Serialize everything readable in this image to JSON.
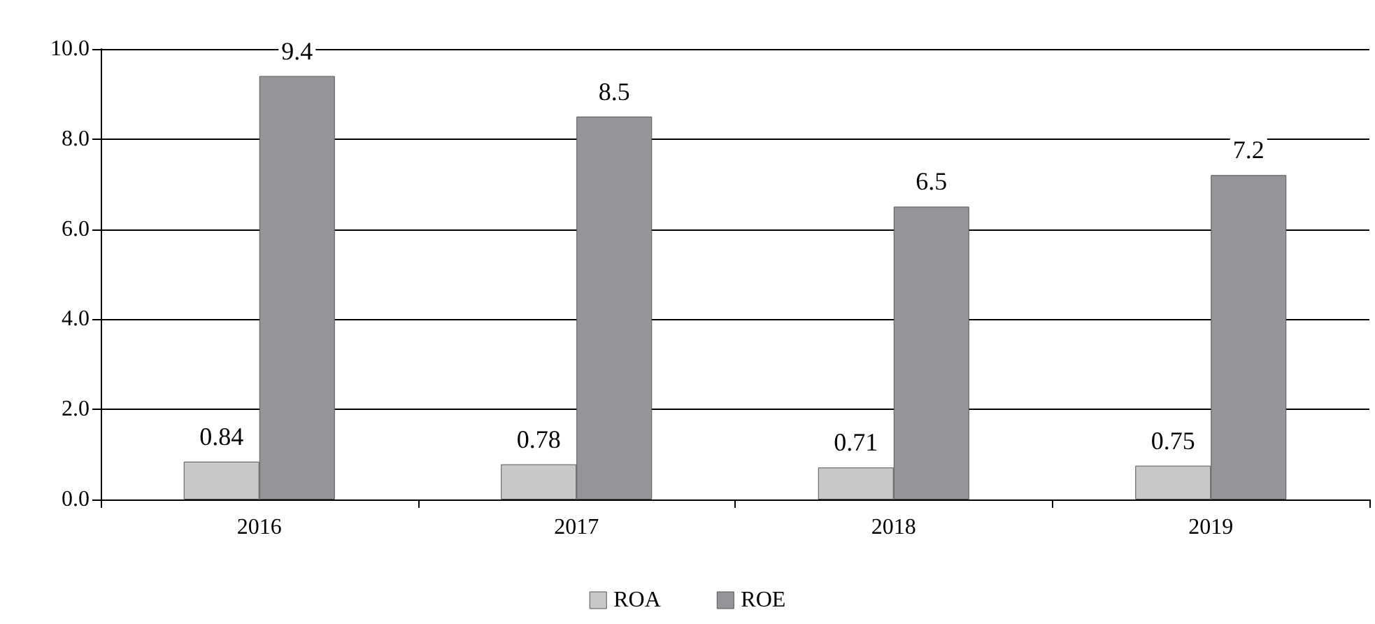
{
  "chart_data": {
    "type": "bar",
    "categories": [
      "2016",
      "2017",
      "2018",
      "2019"
    ],
    "series": [
      {
        "name": "ROA",
        "color": "#c8c8c8",
        "values": [
          0.84,
          0.78,
          0.71,
          0.75
        ]
      },
      {
        "name": "ROE",
        "color": "#939598",
        "values": [
          9.4,
          8.5,
          6.5,
          7.2
        ]
      }
    ],
    "ylim": [
      0,
      10
    ],
    "yticks": [
      {
        "value": 0,
        "label": "0.0"
      },
      {
        "value": 2,
        "label": "2.0"
      },
      {
        "value": 4,
        "label": "4.0"
      },
      {
        "value": 6,
        "label": "6.0"
      },
      {
        "value": 8,
        "label": "8.0"
      },
      {
        "value": 10,
        "label": "10.0"
      }
    ],
    "grid": "y",
    "legend": "bottom",
    "data_labels": true
  }
}
